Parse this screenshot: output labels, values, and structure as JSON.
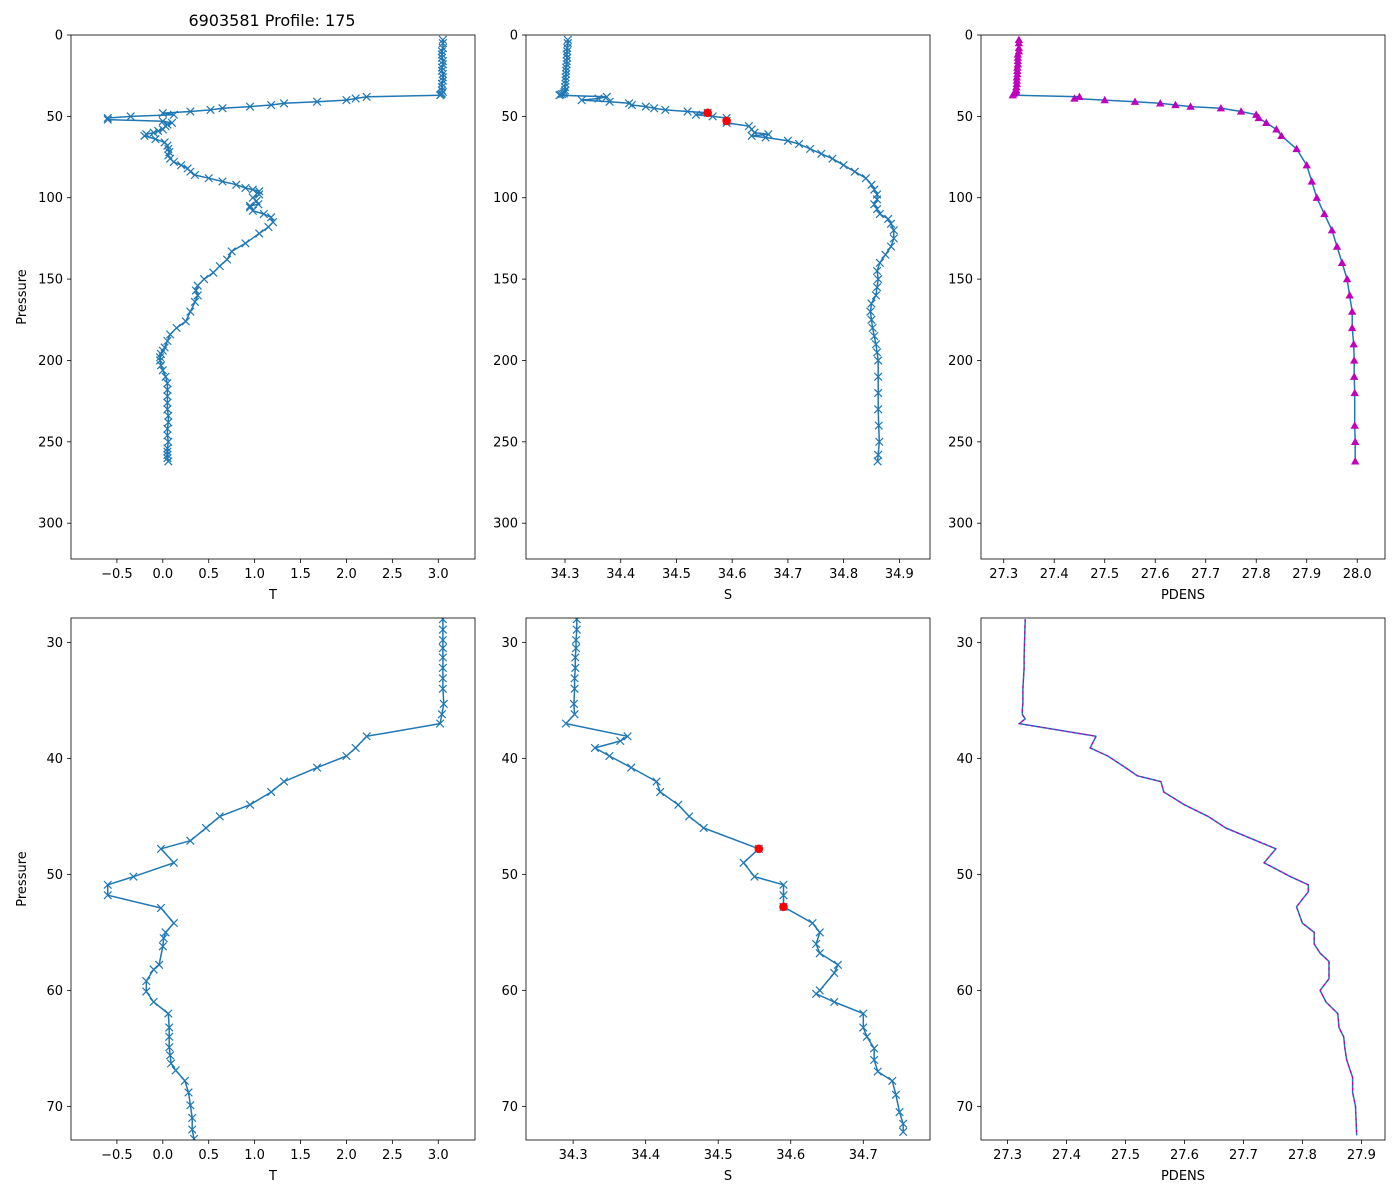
{
  "figure_title": "6903581 Profile: 175",
  "colors": {
    "line": "#1f77b4",
    "density": "#bf00bf",
    "flag": "#ff0000"
  },
  "chart_data": [
    {
      "id": "top-temperature",
      "type": "line",
      "marker": "x",
      "xlabel": "T",
      "ylabel": "Pressure",
      "xlim": [
        -1.0,
        3.4
      ],
      "ylim": [
        322,
        0
      ],
      "y_inverted": true,
      "xticks": [
        -0.5,
        0.0,
        0.5,
        1.0,
        1.5,
        2.0,
        2.5,
        3.0
      ],
      "xtick_labels": [
        "−0.5",
        "0.0",
        "0.5",
        "1.0",
        "1.5",
        "2.0",
        "2.5",
        "3.0"
      ],
      "yticks": [
        0,
        50,
        100,
        150,
        200,
        250,
        300
      ],
      "ytick_labels": [
        "0",
        "50",
        "100",
        "150",
        "200",
        "250",
        "300"
      ],
      "series": [
        {
          "name": "T",
          "x": [
            3.05,
            3.05,
            3.05,
            3.04,
            3.04,
            3.04,
            3.05,
            3.05,
            3.04,
            3.04,
            3.05,
            3.05,
            3.05,
            3.04,
            3.04,
            3.04,
            3.05,
            3.04,
            3.03,
            3.02,
            2.22,
            2.1,
            2.0,
            1.68,
            1.32,
            1.18,
            0.95,
            0.65,
            0.52,
            0.3,
            0.0,
            0.12,
            -0.35,
            -0.6,
            -0.6,
            0.0,
            0.1,
            0.05,
            0.03,
            0.0,
            -0.05,
            -0.1,
            -0.18,
            -0.2,
            -0.08,
            0.02,
            0.05,
            0.06,
            0.07,
            0.06,
            0.08,
            0.12,
            0.2,
            0.27,
            0.3,
            0.35,
            0.5,
            0.65,
            0.8,
            0.9,
            0.98,
            1.05,
            1.05,
            0.98,
            1.02,
            1.04,
            0.95,
            0.95,
            0.98,
            1.1,
            1.18,
            1.2,
            1.15,
            1.05,
            0.9,
            0.75,
            0.7,
            0.62,
            0.55,
            0.45,
            0.38,
            0.36,
            0.38,
            0.35,
            0.3,
            0.25,
            0.15,
            0.08,
            0.05,
            0.02,
            0.0,
            -0.02,
            -0.03,
            -0.03,
            -0.02,
            0.0,
            0.03,
            0.05,
            0.05,
            0.05,
            0.05,
            0.05,
            0.06,
            0.06,
            0.05,
            0.05,
            0.06,
            0.05,
            0.05,
            0.05,
            0.05,
            0.06
          ],
          "y": [
            3,
            5,
            8,
            10,
            12,
            14,
            16,
            18,
            20,
            22,
            24,
            26,
            28,
            30,
            32,
            34,
            35,
            36,
            36.5,
            37,
            38,
            39,
            40,
            41,
            42,
            43,
            44,
            45,
            46,
            47,
            48,
            49,
            50,
            51,
            52,
            53,
            54,
            55,
            56,
            58,
            59,
            60,
            61,
            62,
            64,
            66,
            68,
            70,
            72,
            74,
            76,
            78,
            80,
            82,
            84,
            86,
            88,
            90,
            92,
            94,
            95,
            96,
            98,
            100,
            102,
            104,
            105,
            106,
            108,
            110,
            112,
            115,
            118,
            122,
            128,
            133,
            138,
            142,
            146,
            150,
            154,
            157,
            160,
            164,
            170,
            176,
            180,
            184,
            188,
            192,
            194,
            196,
            198,
            200,
            203,
            206,
            210,
            214,
            218,
            222,
            226,
            230,
            234,
            238,
            242,
            246,
            250,
            254,
            256,
            258,
            260,
            262
          ]
        }
      ]
    },
    {
      "id": "top-salinity",
      "type": "line",
      "marker": "x",
      "xlabel": "S",
      "ylabel": "",
      "xlim": [
        34.23,
        34.955
      ],
      "ylim": [
        322,
        0
      ],
      "y_inverted": true,
      "xticks": [
        34.3,
        34.4,
        34.5,
        34.6,
        34.7,
        34.8,
        34.9
      ],
      "xtick_labels": [
        "34.3",
        "34.4",
        "34.5",
        "34.6",
        "34.7",
        "34.8",
        "34.9"
      ],
      "yticks": [
        0,
        50,
        100,
        150,
        200,
        250,
        300
      ],
      "ytick_labels": [
        "0",
        "50",
        "100",
        "150",
        "200",
        "250",
        "300"
      ],
      "series": [
        {
          "name": "S",
          "x": [
            34.305,
            34.305,
            34.304,
            34.304,
            34.303,
            34.304,
            34.303,
            34.303,
            34.302,
            34.302,
            34.302,
            34.301,
            34.301,
            34.301,
            34.3,
            34.3,
            34.299,
            34.298,
            34.295,
            34.292,
            34.29,
            34.375,
            34.36,
            34.33,
            34.38,
            34.415,
            34.42,
            34.445,
            34.46,
            34.48,
            34.52,
            34.556,
            34.535,
            34.565,
            34.59,
            34.59,
            34.59,
            34.63,
            34.635,
            34.64,
            34.665,
            34.635,
            34.66,
            34.7,
            34.72,
            34.74,
            34.76,
            34.78,
            34.8,
            34.82,
            34.84,
            34.85,
            34.855,
            34.86,
            34.86,
            34.855,
            34.86,
            34.865,
            34.88,
            34.885,
            34.89,
            34.89,
            34.885,
            34.875,
            34.865,
            34.86,
            34.862,
            34.86,
            34.858,
            34.85,
            34.848,
            34.85,
            34.852,
            34.855,
            34.858,
            34.86,
            34.862,
            34.862,
            34.862,
            34.862,
            34.863,
            34.864,
            34.862,
            34.861
          ],
          "y": [
            3,
            5,
            8,
            10,
            12,
            14,
            16,
            18,
            20,
            22,
            24,
            26,
            28,
            30,
            32,
            34,
            35,
            36,
            36.3,
            36.6,
            37,
            38,
            39,
            40,
            41,
            42,
            43,
            44,
            45,
            46,
            47,
            47.8,
            49,
            50,
            51,
            52.8,
            54,
            56,
            58,
            60,
            61,
            62,
            63,
            65,
            67,
            70,
            73,
            76,
            80,
            84,
            88,
            92,
            95,
            98,
            101,
            104,
            107,
            110,
            113,
            116,
            120,
            125,
            130,
            135,
            140,
            145,
            150,
            155,
            160,
            165,
            170,
            175,
            180,
            185,
            190,
            195,
            200,
            210,
            220,
            230,
            240,
            250,
            258,
            262
          ]
        }
      ],
      "flagged": {
        "x": [
          34.556,
          34.59
        ],
        "y": [
          47.8,
          52.8
        ]
      }
    },
    {
      "id": "top-density",
      "type": "line",
      "marker": "triangle",
      "xlabel": "PDENS",
      "ylabel": "",
      "xlim": [
        27.255,
        28.055
      ],
      "ylim": [
        322,
        0
      ],
      "y_inverted": true,
      "xticks": [
        27.3,
        27.4,
        27.5,
        27.6,
        27.7,
        27.8,
        27.9,
        28.0
      ],
      "xtick_labels": [
        "27.3",
        "27.4",
        "27.5",
        "27.6",
        "27.7",
        "27.8",
        "27.9",
        "28.0"
      ],
      "yticks": [
        0,
        50,
        100,
        150,
        200,
        250,
        300
      ],
      "ytick_labels": [
        "0",
        "50",
        "100",
        "150",
        "200",
        "250",
        "300"
      ],
      "series": [
        {
          "name": "PDENS",
          "x": [
            27.33,
            27.33,
            27.33,
            27.33,
            27.328,
            27.328,
            27.328,
            27.328,
            27.327,
            27.327,
            27.327,
            27.326,
            27.326,
            27.326,
            27.325,
            27.325,
            27.324,
            27.32,
            27.318,
            27.45,
            27.44,
            27.5,
            27.56,
            27.61,
            27.64,
            27.67,
            27.73,
            27.77,
            27.8,
            27.805,
            27.82,
            27.84,
            27.85,
            27.88,
            27.9,
            27.91,
            27.92,
            27.935,
            27.95,
            27.96,
            27.97,
            27.98,
            27.985,
            27.99,
            27.99,
            27.993,
            27.994,
            27.994,
            27.995,
            27.995,
            27.996,
            27.996
          ],
          "y": [
            3,
            5,
            8,
            10,
            12,
            14,
            16,
            18,
            20,
            22,
            24,
            26,
            28,
            30,
            32,
            34,
            35,
            36,
            37,
            38,
            39,
            40,
            41,
            42,
            43,
            44,
            45,
            47,
            49,
            51,
            54,
            58,
            62,
            70,
            80,
            90,
            100,
            110,
            120,
            130,
            140,
            150,
            160,
            170,
            180,
            190,
            200,
            210,
            220,
            240,
            250,
            262
          ]
        }
      ]
    },
    {
      "id": "zoom-temperature",
      "type": "line",
      "marker": "x",
      "xlabel": "T",
      "ylabel": "Pressure",
      "xlim": [
        -1.0,
        3.4
      ],
      "ylim": [
        72.9,
        27.9
      ],
      "y_inverted": true,
      "xticks": [
        -0.5,
        0.0,
        0.5,
        1.0,
        1.5,
        2.0,
        2.5,
        3.0
      ],
      "xtick_labels": [
        "−0.5",
        "0.0",
        "0.5",
        "1.0",
        "1.5",
        "2.0",
        "2.5",
        "3.0"
      ],
      "yticks": [
        30,
        40,
        50,
        60,
        70
      ],
      "ytick_labels": [
        "30",
        "40",
        "50",
        "60",
        "70"
      ],
      "series": [
        {
          "name": "T",
          "x": [
            3.05,
            3.05,
            3.05,
            3.05,
            3.05,
            3.05,
            3.05,
            3.05,
            3.06,
            3.04,
            3.02,
            2.22,
            2.1,
            2.0,
            1.68,
            1.32,
            1.18,
            0.95,
            0.62,
            0.47,
            0.3,
            -0.02,
            0.12,
            -0.32,
            -0.6,
            -0.6,
            -0.02,
            0.12,
            0.03,
            0.01,
            0.0,
            -0.04,
            -0.1,
            -0.18,
            -0.18,
            -0.1,
            0.06,
            0.07,
            0.07,
            0.07,
            0.08,
            0.09,
            0.14,
            0.24,
            0.28,
            0.3,
            0.32,
            0.32,
            0.34
          ],
          "y": [
            28,
            28.9,
            29.8,
            30.5,
            31.3,
            32.2,
            33.1,
            34.0,
            35.3,
            36.2,
            37.0,
            38.1,
            39.1,
            39.8,
            40.8,
            42.0,
            42.9,
            44.0,
            45.0,
            46.0,
            47.1,
            47.8,
            49.0,
            50.2,
            50.9,
            51.8,
            52.9,
            54.2,
            55.0,
            55.5,
            56.2,
            57.8,
            58.2,
            59.2,
            60.1,
            61.0,
            62.0,
            63.2,
            64.0,
            64.9,
            65.6,
            66.3,
            66.9,
            67.8,
            68.8,
            69.9,
            71.0,
            72.0,
            72.8
          ]
        }
      ]
    },
    {
      "id": "zoom-salinity",
      "type": "line",
      "marker": "x",
      "xlabel": "S",
      "ylabel": "",
      "xlim": [
        34.235,
        34.792
      ],
      "ylim": [
        72.9,
        27.9
      ],
      "y_inverted": true,
      "xticks": [
        34.3,
        34.4,
        34.5,
        34.6,
        34.7
      ],
      "xtick_labels": [
        "34.3",
        "34.4",
        "34.5",
        "34.6",
        "34.7"
      ],
      "yticks": [
        30,
        40,
        50,
        60,
        70
      ],
      "ytick_labels": [
        "30",
        "40",
        "50",
        "60",
        "70"
      ],
      "series": [
        {
          "name": "S",
          "x": [
            34.305,
            34.305,
            34.304,
            34.304,
            34.303,
            34.303,
            34.302,
            34.302,
            34.301,
            34.302,
            34.29,
            34.375,
            34.365,
            34.33,
            34.35,
            34.38,
            34.415,
            34.42,
            34.445,
            34.46,
            34.48,
            34.556,
            34.535,
            34.55,
            34.59,
            34.59,
            34.59,
            34.63,
            34.64,
            34.635,
            34.64,
            34.665,
            34.66,
            34.64,
            34.635,
            34.66,
            34.7,
            34.7,
            34.705,
            34.715,
            34.715,
            34.72,
            34.74,
            34.745,
            34.75,
            34.755,
            34.755
          ],
          "y": [
            28,
            28.9,
            29.8,
            30.5,
            31.3,
            32.2,
            33.1,
            34.0,
            35.3,
            36.2,
            37.0,
            38.1,
            38.5,
            39.1,
            39.8,
            40.8,
            42.0,
            42.9,
            44.0,
            45.0,
            46.0,
            47.8,
            49.0,
            50.2,
            50.9,
            51.8,
            52.8,
            54.2,
            55.0,
            56.0,
            56.8,
            57.8,
            58.5,
            60.0,
            60.3,
            61.0,
            62.0,
            63.2,
            64.0,
            65.0,
            66.0,
            67.0,
            67.8,
            69.0,
            70.5,
            71.5,
            72.2
          ]
        }
      ],
      "flagged": {
        "x": [
          34.556,
          34.59
        ],
        "y": [
          47.8,
          52.8
        ]
      }
    },
    {
      "id": "zoom-density",
      "type": "line",
      "marker": "none",
      "xlabel": "PDENS",
      "ylabel": "",
      "xlim": [
        27.255,
        27.94
      ],
      "ylim": [
        72.9,
        27.9
      ],
      "y_inverted": true,
      "xticks": [
        27.3,
        27.4,
        27.5,
        27.6,
        27.7,
        27.8,
        27.9
      ],
      "xtick_labels": [
        "27.3",
        "27.4",
        "27.5",
        "27.6",
        "27.7",
        "27.8",
        "27.9"
      ],
      "yticks": [
        30,
        40,
        50,
        60,
        70
      ],
      "ytick_labels": [
        "30",
        "40",
        "50",
        "60",
        "70"
      ],
      "series": [
        {
          "name": "PDENS",
          "x": [
            27.33,
            27.329,
            27.328,
            27.328,
            27.327,
            27.326,
            27.326,
            27.325,
            27.325,
            27.33,
            27.32,
            27.45,
            27.44,
            27.47,
            27.5,
            27.52,
            27.56,
            27.565,
            27.6,
            27.64,
            27.67,
            27.755,
            27.735,
            27.78,
            27.81,
            27.81,
            27.79,
            27.8,
            27.82,
            27.82,
            27.83,
            27.845,
            27.845,
            27.83,
            27.84,
            27.86,
            27.862,
            27.87,
            27.872,
            27.875,
            27.885,
            27.885,
            27.89,
            27.892
          ],
          "y": [
            28,
            29.8,
            31.3,
            32.2,
            33.1,
            34.0,
            35.3,
            35.8,
            36.2,
            36.6,
            37.0,
            38.1,
            39.1,
            39.8,
            40.8,
            41.5,
            42.0,
            42.9,
            44.0,
            45.0,
            46.0,
            47.8,
            49.0,
            50.2,
            50.9,
            51.5,
            52.8,
            54.2,
            55.0,
            56.0,
            56.8,
            57.5,
            59.0,
            60.0,
            61.0,
            62.0,
            63.2,
            64.0,
            65.0,
            66.0,
            67.5,
            68.8,
            70.0,
            72.5
          ]
        }
      ]
    }
  ]
}
